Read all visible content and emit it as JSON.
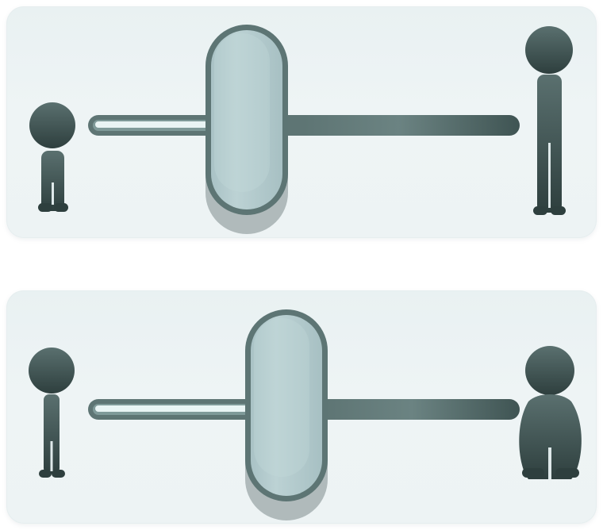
{
  "sliders": [
    {
      "id": "height",
      "description_icons": [
        "short-person-icon",
        "tall-person-icon"
      ],
      "value": 0.38,
      "colors": {
        "figure": "#3f5453",
        "knob_fill": "#b2cacd",
        "knob_border": "#5d7574",
        "track_dark": "#5e7574",
        "track_light": "#e9f4f4"
      }
    },
    {
      "id": "weight",
      "description_icons": [
        "thin-person-icon",
        "heavy-person-icon"
      ],
      "value": 0.46,
      "colors": {
        "figure": "#3f5453",
        "knob_fill": "#b2cacd",
        "knob_border": "#5d7574",
        "track_dark": "#5e7574",
        "track_light": "#e9f4f4"
      }
    }
  ]
}
